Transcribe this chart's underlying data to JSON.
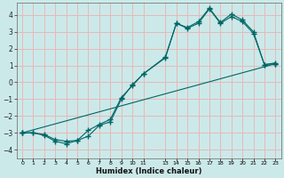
{
  "xlabel": "Humidex (Indice chaleur)",
  "background_color": "#cce9e9",
  "grid_color": "#e8b8b8",
  "line_color": "#006666",
  "xlim": [
    -0.5,
    23.5
  ],
  "ylim": [
    -4.5,
    4.7
  ],
  "yticks": [
    -4,
    -3,
    -2,
    -1,
    0,
    1,
    2,
    3,
    4
  ],
  "xtick_positions": [
    0,
    1,
    2,
    3,
    4,
    5,
    6,
    7,
    8,
    9,
    10,
    11,
    13,
    14,
    15,
    16,
    17,
    18,
    19,
    20,
    21,
    22,
    23
  ],
  "xtick_labels": [
    "0",
    "1",
    "2",
    "3",
    "4",
    "5",
    "6",
    "7",
    "8",
    "9",
    "10",
    "11",
    "13",
    "14",
    "15",
    "16",
    "17",
    "18",
    "19",
    "20",
    "21",
    "22",
    "23"
  ],
  "line1_x": [
    0,
    1,
    2,
    3,
    4,
    5,
    6,
    7,
    8,
    9,
    10,
    11,
    13,
    14,
    15,
    16,
    17,
    18,
    19,
    20,
    21,
    22,
    23
  ],
  "line1_y": [
    -3.0,
    -3.0,
    -3.1,
    -3.4,
    -3.5,
    -3.45,
    -2.85,
    -2.5,
    -2.2,
    -0.9,
    -0.2,
    0.5,
    1.5,
    3.5,
    3.2,
    3.5,
    4.35,
    3.5,
    3.9,
    3.6,
    2.9,
    1.05,
    1.1
  ],
  "line2_x": [
    0,
    1,
    2,
    3,
    4,
    5,
    6,
    7,
    8,
    9,
    10,
    11,
    13,
    14,
    15,
    16,
    17,
    18,
    19,
    20,
    21,
    22,
    23
  ],
  "line2_y": [
    -3.0,
    -3.0,
    -3.15,
    -3.5,
    -3.65,
    -3.45,
    -3.2,
    -2.55,
    -2.35,
    -1.0,
    -0.15,
    0.5,
    1.45,
    3.5,
    3.25,
    3.6,
    4.4,
    3.55,
    4.05,
    3.7,
    3.0,
    1.05,
    1.15
  ],
  "line3_x": [
    0,
    23
  ],
  "line3_y": [
    -3.0,
    1.1
  ]
}
